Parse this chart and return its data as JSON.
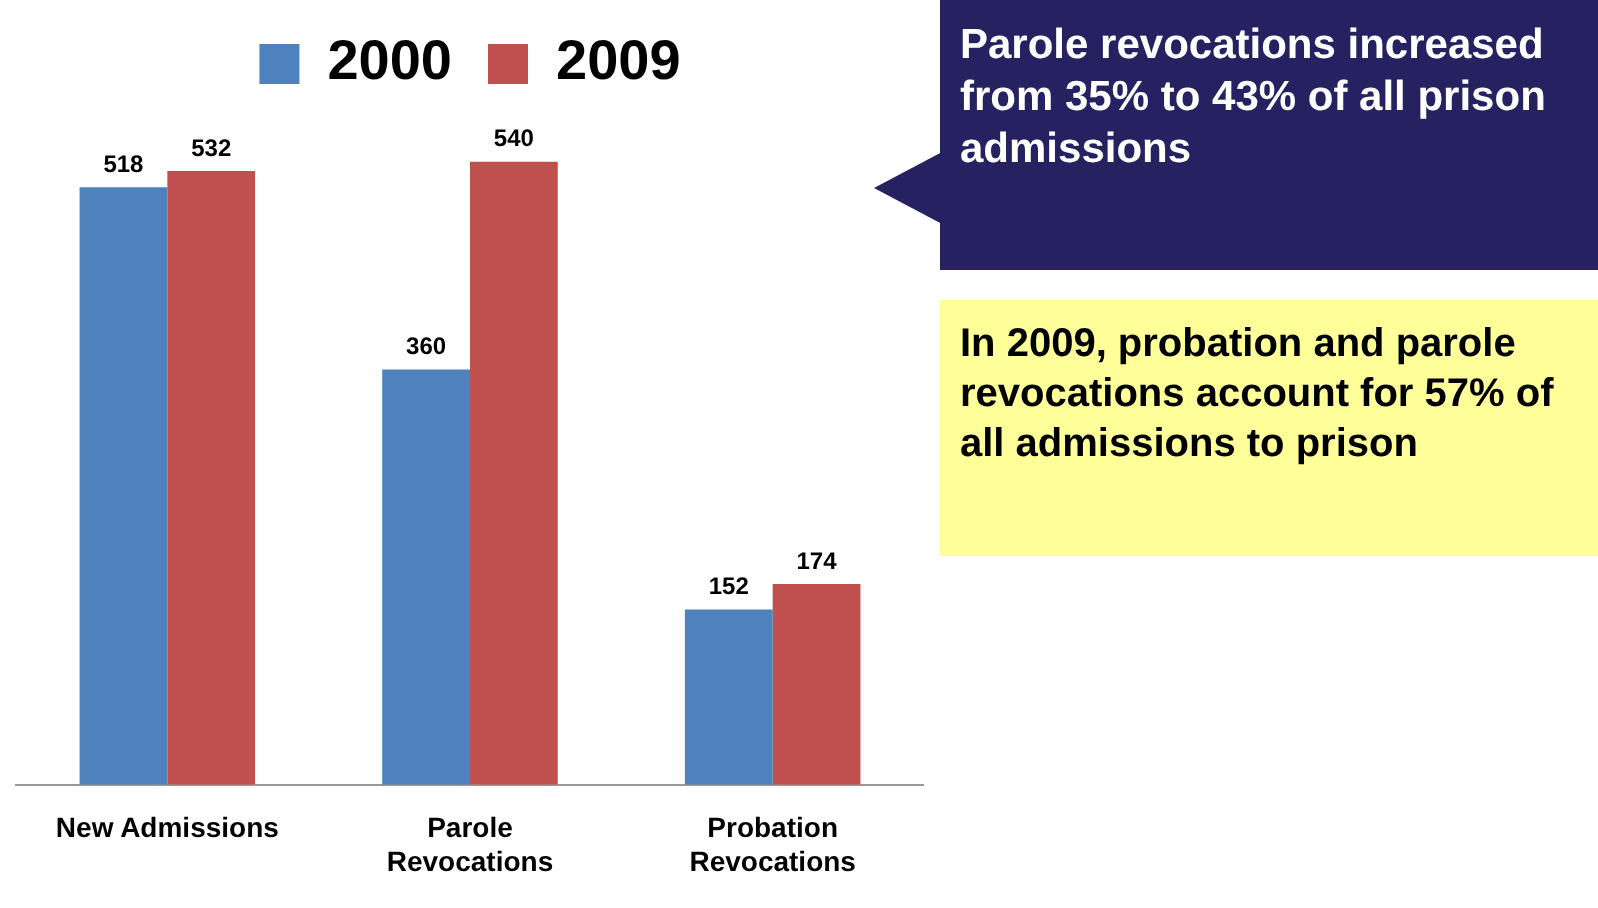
{
  "chart_data": {
    "type": "bar",
    "categories": [
      "New Admissions",
      "Parole Revocations",
      "Probation Revocations"
    ],
    "series": [
      {
        "name": "2000",
        "color": "#4f81bd",
        "values": [
          518,
          360,
          152
        ]
      },
      {
        "name": "2009",
        "color": "#c0504d",
        "values": [
          532,
          540,
          174
        ]
      }
    ],
    "data_labels": true,
    "legend": "top",
    "grid": false,
    "annotations": [
      "Parole revocations increased from 35% to 43% of all prison admissions",
      "In 2009, probation and parole revocations account for 57% of all admissions to prison"
    ]
  }
}
